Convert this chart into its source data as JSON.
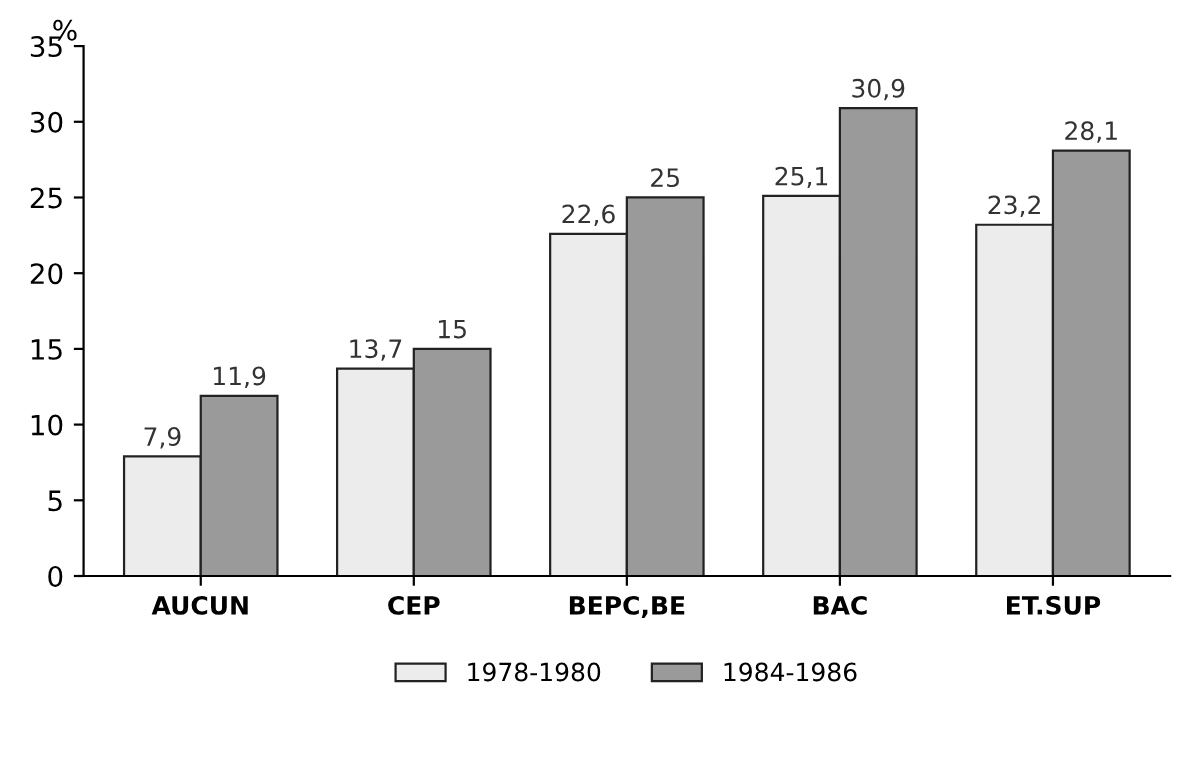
{
  "chart_data": {
    "type": "bar",
    "ylabel": "%",
    "categories": [
      "AUCUN",
      "CEP",
      "BEPC,BE",
      "BAC",
      "ET.SUP"
    ],
    "series": [
      {
        "name": "1978-1980",
        "color": "#ececec",
        "values": [
          7.9,
          13.7,
          22.6,
          25.1,
          23.2
        ],
        "value_labels": [
          "7,9",
          "13,7",
          "22,6",
          "25,1",
          "23,2"
        ]
      },
      {
        "name": "1984-1986",
        "color": "#9a9a9a",
        "values": [
          11.9,
          15,
          25,
          30.9,
          28.1
        ],
        "value_labels": [
          "11,9",
          "15",
          "25",
          "30,9",
          "28,1"
        ]
      }
    ],
    "ylim": [
      0,
      35
    ],
    "yticks": [
      0,
      5,
      10,
      15,
      20,
      25,
      30,
      35
    ],
    "grid": false,
    "legend": "bottom"
  }
}
